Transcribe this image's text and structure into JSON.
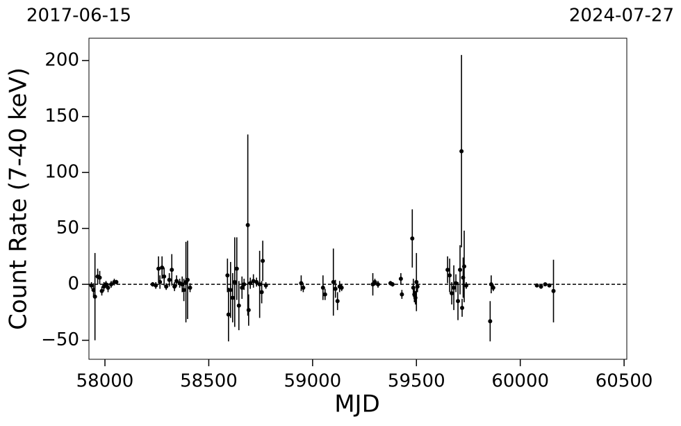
{
  "chart_data": {
    "type": "errorbar",
    "annotations": [
      "2017-06-15",
      "2024-07-27"
    ],
    "xlabel": "MJD",
    "ylabel": "Count Rate (7-40 keV)",
    "color": "#000000",
    "hline": 0,
    "xlim": [
      57923,
      60513
    ],
    "ylim": [
      -67,
      220
    ],
    "xticks": [
      58000,
      58500,
      59000,
      59500,
      60000,
      60500
    ],
    "yticks": [
      {
        "value": -50,
        "label": "−50"
      },
      0,
      50,
      100,
      150,
      200
    ],
    "x": [
      57935,
      57945,
      57952,
      57965,
      57975,
      57985,
      57995,
      58005,
      58015,
      58030,
      58045,
      58055,
      58230,
      58245,
      58258,
      58265,
      58275,
      58285,
      58295,
      58310,
      58322,
      58335,
      58345,
      58360,
      58372,
      58380,
      58390,
      58398,
      58410,
      58590,
      58595,
      58605,
      58615,
      58625,
      58635,
      58645,
      58660,
      58670,
      58688,
      58692,
      58700,
      58715,
      58730,
      58745,
      58755,
      58760,
      58775,
      58945,
      58955,
      59050,
      59060,
      59100,
      59110,
      59120,
      59130,
      59140,
      59290,
      59300,
      59315,
      59375,
      59385,
      59425,
      59430,
      59480,
      59485,
      59490,
      59495,
      59500,
      59505,
      59650,
      59660,
      59670,
      59680,
      59690,
      59700,
      59710,
      59717,
      59720,
      59725,
      59730,
      59740,
      59855,
      59860,
      59870,
      60080,
      60100,
      60120,
      60140,
      60160
    ],
    "values": [
      -1,
      -5,
      -11,
      7,
      6,
      -6,
      -2,
      0,
      -3,
      0,
      2,
      2,
      0,
      -1,
      14,
      2,
      15,
      7,
      -2,
      4,
      13,
      -2,
      3,
      1,
      0,
      -5,
      2,
      4,
      -3,
      8,
      -27,
      -5,
      -12,
      2,
      14,
      -19,
      -3,
      0,
      53,
      -23,
      1,
      3,
      2,
      0,
      -7,
      21,
      -1,
      1,
      -3,
      -3,
      -9,
      2,
      -4,
      -15,
      -2,
      -3,
      0,
      2,
      0,
      1,
      0,
      5,
      -9,
      41,
      -3,
      -9,
      -12,
      2,
      -2,
      13,
      8,
      -8,
      -3,
      1,
      -15,
      13,
      119,
      -21,
      6,
      16,
      -1,
      -33,
      0,
      -3,
      -1,
      -2,
      0,
      -1,
      -6
    ],
    "errors": [
      3,
      6,
      39,
      7,
      6,
      4,
      4,
      3,
      4,
      3,
      3,
      2,
      2,
      3,
      11,
      6,
      10,
      8,
      3,
      6,
      14,
      4,
      5,
      4,
      7,
      10,
      36,
      35,
      4,
      15,
      24,
      25,
      22,
      40,
      28,
      22,
      10,
      5,
      81,
      14,
      5,
      6,
      4,
      30,
      10,
      18,
      3,
      7,
      4,
      11,
      5,
      30,
      8,
      8,
      5,
      3,
      10,
      3,
      3,
      2,
      2,
      5,
      4,
      26,
      8,
      7,
      6,
      26,
      5,
      12,
      15,
      10,
      20,
      8,
      17,
      22,
      86,
      8,
      18,
      32,
      3,
      18,
      8,
      3,
      1,
      2,
      1,
      1,
      28
    ]
  }
}
